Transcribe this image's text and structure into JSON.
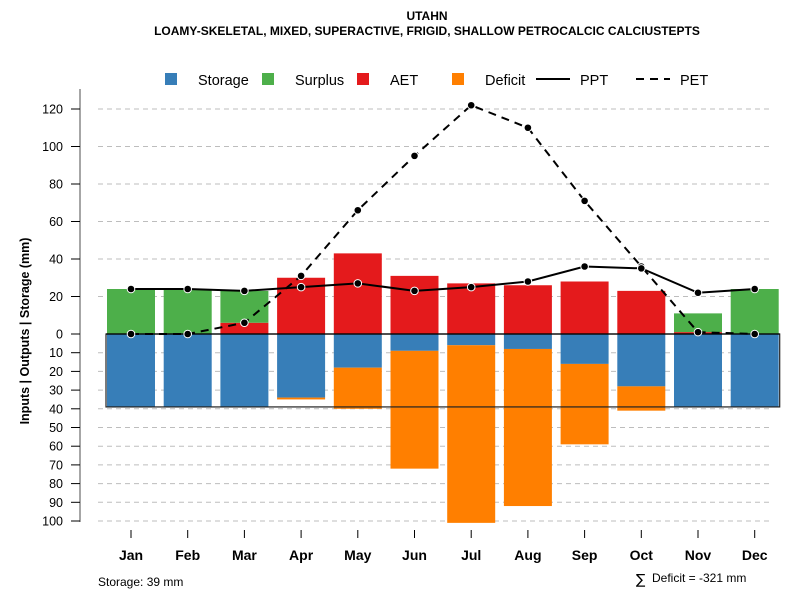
{
  "chart_data": {
    "type": "bar",
    "title": "UTAHN",
    "subtitle": "LOAMY-SKELETAL, MIXED, SUPERACTIVE, FRIGID, SHALLOW PETROCALCIC CALCIUSTEPTS",
    "ylabel": "Inputs | Outputs | Storage    (mm)",
    "xlabel": "",
    "categories": [
      "Jan",
      "Feb",
      "Mar",
      "Apr",
      "May",
      "Jun",
      "Jul",
      "Aug",
      "Sep",
      "Oct",
      "Nov",
      "Dec"
    ],
    "ylim_top": [
      0,
      120
    ],
    "ylim_bottom": [
      0,
      100
    ],
    "yticks_top": [
      0,
      20,
      40,
      60,
      80,
      100,
      120
    ],
    "yticks_bottom": [
      10,
      20,
      30,
      40,
      50,
      60,
      70,
      80,
      90,
      100
    ],
    "grid": true,
    "legend_position": "top",
    "legend": [
      {
        "label": "Storage",
        "type": "box",
        "color": "#377EB8"
      },
      {
        "label": "Surplus",
        "type": "box",
        "color": "#4DAF4A"
      },
      {
        "label": "AET",
        "type": "box",
        "color": "#E41A1C"
      },
      {
        "label": "Deficit",
        "type": "box",
        "color": "#FF7F00"
      },
      {
        "label": "PPT",
        "type": "solid-line",
        "color": "#000000"
      },
      {
        "label": "PET",
        "type": "dashed-line",
        "color": "#000000"
      }
    ],
    "series": [
      {
        "name": "AET",
        "side": "above",
        "color": "#E41A1C",
        "values": [
          0,
          0,
          6,
          30,
          43,
          31,
          27,
          26,
          28,
          23,
          1,
          0
        ]
      },
      {
        "name": "Surplus",
        "side": "above",
        "color": "#4DAF4A",
        "values": [
          24,
          24,
          17,
          0,
          0,
          0,
          0,
          0,
          0,
          0,
          10,
          24
        ]
      },
      {
        "name": "Storage",
        "side": "below",
        "color": "#377EB8",
        "values": [
          39,
          39,
          39,
          34,
          18,
          9,
          6,
          8,
          16,
          28,
          39,
          39
        ]
      },
      {
        "name": "Deficit",
        "side": "below",
        "color": "#FF7F00",
        "values": [
          0,
          0,
          0,
          1,
          22,
          63,
          95,
          84,
          43,
          13,
          0,
          0
        ]
      },
      {
        "name": "PPT",
        "type": "line",
        "style": "solid",
        "color": "#000000",
        "values": [
          24,
          24,
          23,
          25,
          27,
          23,
          25,
          28,
          36,
          35,
          22,
          24
        ]
      },
      {
        "name": "PET",
        "type": "line",
        "style": "dashed",
        "color": "#000000",
        "values": [
          0,
          0,
          6,
          31,
          66,
          95,
          122,
          110,
          71,
          36,
          1,
          0
        ]
      }
    ],
    "storage_capacity": 39,
    "annotations": {
      "storage": "Storage: 39 mm",
      "deficit_symbol": "∑",
      "deficit": "Deficit = -321 mm"
    }
  }
}
